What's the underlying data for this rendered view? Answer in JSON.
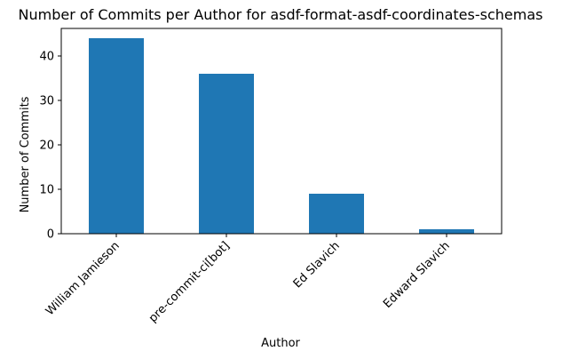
{
  "chart_data": {
    "type": "bar",
    "title": "Number of Commits per Author for asdf-format-asdf-coordinates-schemas",
    "xlabel": "Author",
    "ylabel": "Number of Commits",
    "categories": [
      "William Jamieson",
      "pre-commit-ci[bot]",
      "Ed Slavich",
      "Edward Slavich"
    ],
    "values": [
      44,
      36,
      9,
      1
    ],
    "ylim": [
      0,
      46.2
    ],
    "yticks": [
      0,
      10,
      20,
      30,
      40
    ],
    "bar_color": "#1f77b4",
    "grid": false,
    "legend": false
  }
}
